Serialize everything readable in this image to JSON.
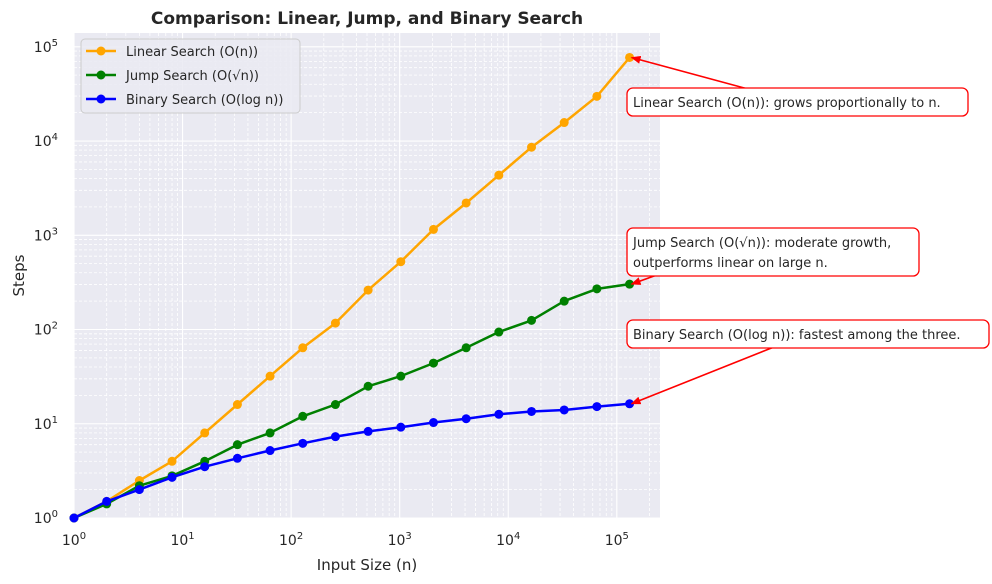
{
  "chart_data": {
    "type": "line",
    "title": "Comparison: Linear, Jump, and Binary Search",
    "xlabel": "Input Size (n)",
    "ylabel": "Steps",
    "xscale": "log",
    "yscale": "log",
    "xlim": [
      1,
      250000
    ],
    "ylim": [
      1,
      140000
    ],
    "grid": true,
    "legend_position": "top-left",
    "x": [
      1,
      2,
      4,
      8,
      16,
      32,
      64,
      128,
      256,
      512,
      1024,
      2048,
      4096,
      8192,
      16384,
      32768,
      65536,
      131072
    ],
    "series": [
      {
        "name": "Linear Search (O(n))",
        "color": "#ffa500",
        "values": [
          1,
          1.5,
          2.5,
          4,
          8,
          16,
          32,
          64,
          117,
          262,
          524,
          1153,
          2200,
          4340,
          8600,
          15700,
          29800,
          77000
        ]
      },
      {
        "name": "Jump Search (O(√n))",
        "color": "#008000",
        "values": [
          1,
          1.41,
          2.2,
          2.8,
          4,
          6,
          8,
          12,
          16,
          25,
          32,
          44,
          64,
          94,
          125,
          200,
          270,
          303
        ]
      },
      {
        "name": "Binary Search (O(log n))",
        "color": "#0000ff",
        "values": [
          1,
          1.5,
          2,
          2.7,
          3.5,
          4.3,
          5.2,
          6.2,
          7.3,
          8.3,
          9.2,
          10.3,
          11.3,
          12.6,
          13.5,
          14,
          15.2,
          16.3
        ]
      }
    ],
    "x_tick_labels": [
      {
        "base": "10",
        "exp": "0"
      },
      {
        "base": "10",
        "exp": "1"
      },
      {
        "base": "10",
        "exp": "2"
      },
      {
        "base": "10",
        "exp": "3"
      },
      {
        "base": "10",
        "exp": "4"
      },
      {
        "base": "10",
        "exp": "5"
      }
    ],
    "y_tick_labels": [
      {
        "base": "10",
        "exp": "0"
      },
      {
        "base": "10",
        "exp": "1"
      },
      {
        "base": "10",
        "exp": "2"
      },
      {
        "base": "10",
        "exp": "3"
      },
      {
        "base": "10",
        "exp": "4"
      },
      {
        "base": "10",
        "exp": "5"
      }
    ],
    "legend": [
      {
        "label": "Linear Search (O(n))",
        "color": "#ffa500"
      },
      {
        "label": "Jump Search (O(√n))",
        "color": "#008000"
      },
      {
        "label": "Binary Search (O(log n))",
        "color": "#0000ff"
      }
    ],
    "annotations": [
      {
        "lines": [
          "Linear Search (O(n)): grows proportionally to n."
        ],
        "target_x": 131072,
        "target_y": 77000
      },
      {
        "lines": [
          "Jump Search (O(√n)): moderate growth,",
          "outperforms linear on large n."
        ],
        "target_x": 131072,
        "target_y": 303
      },
      {
        "lines": [
          "Binary Search (O(log n)): fastest among the three."
        ],
        "target_x": 131072,
        "target_y": 16.3
      }
    ],
    "colors": {
      "background": "#eaeaf2",
      "grid": "#ffffff",
      "arrow": "#ff0000",
      "annotation_border": "#ff0000"
    }
  }
}
